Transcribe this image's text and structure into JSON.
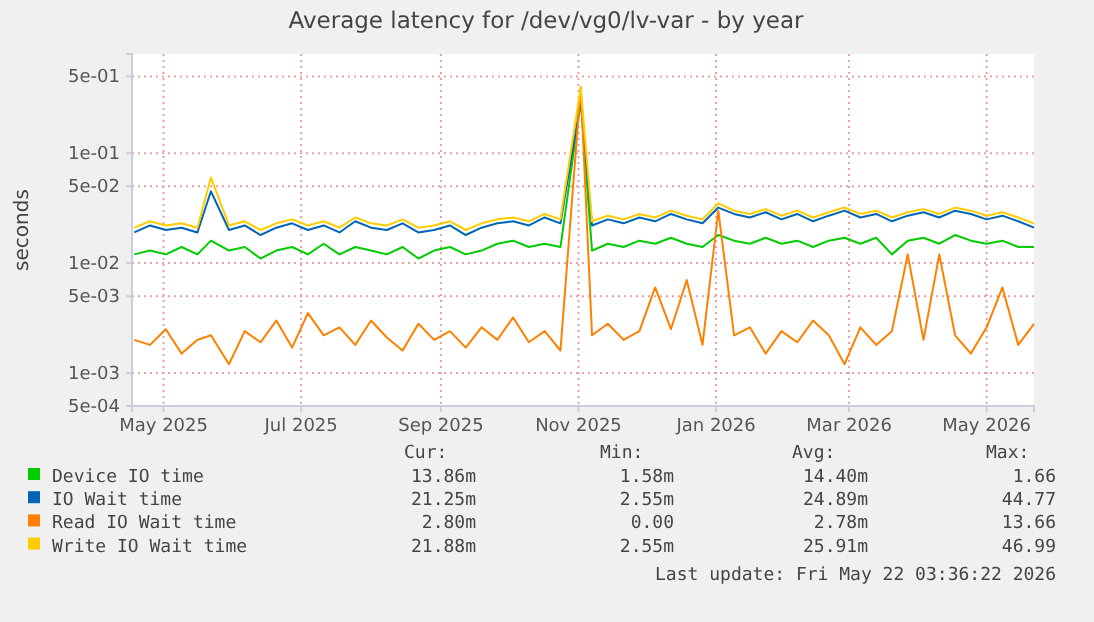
{
  "chart_data": {
    "type": "line",
    "title": "Average latency for /dev/vg0/lv-var - by year",
    "ylabel": "seconds",
    "log": true,
    "grid": true,
    "legend": "bottom",
    "x": [
      "2025-04-18",
      "2025-04-25",
      "2025-05-02",
      "2025-05-09",
      "2025-05-16",
      "2025-05-22",
      "2025-05-30",
      "2025-06-06",
      "2025-06-13",
      "2025-06-20",
      "2025-06-27",
      "2025-07-04",
      "2025-07-11",
      "2025-07-18",
      "2025-07-25",
      "2025-08-01",
      "2025-08-08",
      "2025-08-15",
      "2025-08-22",
      "2025-08-29",
      "2025-09-05",
      "2025-09-12",
      "2025-09-19",
      "2025-09-26",
      "2025-10-03",
      "2025-10-10",
      "2025-10-17",
      "2025-10-24",
      "2025-11-02",
      "2025-11-07",
      "2025-11-14",
      "2025-11-21",
      "2025-11-28",
      "2025-12-05",
      "2025-12-12",
      "2025-12-19",
      "2025-12-26",
      "2026-01-02",
      "2026-01-09",
      "2026-01-16",
      "2026-01-23",
      "2026-01-30",
      "2026-02-06",
      "2026-02-13",
      "2026-02-20",
      "2026-02-27",
      "2026-03-06",
      "2026-03-13",
      "2026-03-20",
      "2026-03-27",
      "2026-04-03",
      "2026-04-10",
      "2026-04-17",
      "2026-04-24",
      "2026-05-01",
      "2026-05-08",
      "2026-05-15",
      "2026-05-22"
    ],
    "xlim": [
      "2025-04-17",
      "2026-05-22"
    ],
    "xticks": [
      {
        "value": "2025-05-01",
        "label": "May 2025"
      },
      {
        "value": "2025-07-01",
        "label": "Jul 2025"
      },
      {
        "value": "2025-09-01",
        "label": "Sep 2025"
      },
      {
        "value": "2025-11-01",
        "label": "Nov 2025"
      },
      {
        "value": "2026-01-01",
        "label": "Jan 2026"
      },
      {
        "value": "2026-03-01",
        "label": "Mar 2026"
      },
      {
        "value": "2026-05-01",
        "label": "May 2026"
      }
    ],
    "ylim": [
      0.0005,
      0.8
    ],
    "yticks": [
      {
        "value": 0.0005,
        "label": "5e-04"
      },
      {
        "value": 0.001,
        "label": "1e-03"
      },
      {
        "value": 0.005,
        "label": "5e-03"
      },
      {
        "value": 0.01,
        "label": "1e-02"
      },
      {
        "value": 0.05,
        "label": "5e-02"
      },
      {
        "value": 0.1,
        "label": "1e-01"
      },
      {
        "value": 0.5,
        "label": "5e-01"
      }
    ],
    "series": [
      {
        "name": "Device IO time",
        "color": "#00cc00",
        "values": [
          0.012,
          0.013,
          0.012,
          0.014,
          0.012,
          0.016,
          0.013,
          0.014,
          0.011,
          0.013,
          0.014,
          0.012,
          0.015,
          0.012,
          0.014,
          0.013,
          0.012,
          0.014,
          0.011,
          0.013,
          0.014,
          0.012,
          0.013,
          0.015,
          0.016,
          0.014,
          0.015,
          0.014,
          0.3,
          0.013,
          0.015,
          0.014,
          0.016,
          0.015,
          0.017,
          0.015,
          0.014,
          0.018,
          0.016,
          0.015,
          0.017,
          0.015,
          0.016,
          0.014,
          0.016,
          0.017,
          0.015,
          0.017,
          0.012,
          0.016,
          0.017,
          0.015,
          0.018,
          0.016,
          0.015,
          0.016,
          0.014,
          0.014
        ]
      },
      {
        "name": "IO Wait time",
        "color": "#0066b3",
        "values": [
          0.019,
          0.022,
          0.02,
          0.021,
          0.019,
          0.045,
          0.02,
          0.022,
          0.018,
          0.021,
          0.023,
          0.02,
          0.022,
          0.019,
          0.024,
          0.021,
          0.02,
          0.023,
          0.019,
          0.02,
          0.022,
          0.018,
          0.021,
          0.023,
          0.024,
          0.022,
          0.026,
          0.023,
          0.3,
          0.022,
          0.025,
          0.023,
          0.026,
          0.024,
          0.028,
          0.025,
          0.023,
          0.032,
          0.028,
          0.026,
          0.029,
          0.025,
          0.028,
          0.024,
          0.027,
          0.03,
          0.026,
          0.028,
          0.024,
          0.027,
          0.029,
          0.026,
          0.03,
          0.028,
          0.025,
          0.027,
          0.024,
          0.021
        ]
      },
      {
        "name": "Read IO Wait time",
        "color": "#ff8000",
        "values": [
          0.002,
          0.0018,
          0.0025,
          0.0015,
          0.002,
          0.0022,
          0.0012,
          0.0024,
          0.0019,
          0.003,
          0.0017,
          0.0035,
          0.0022,
          0.0026,
          0.0018,
          0.003,
          0.0021,
          0.0016,
          0.0028,
          0.002,
          0.0024,
          0.0017,
          0.0026,
          0.002,
          0.0032,
          0.0019,
          0.0024,
          0.0016,
          0.4,
          0.0022,
          0.0028,
          0.002,
          0.0024,
          0.006,
          0.0025,
          0.007,
          0.0018,
          0.03,
          0.0022,
          0.0026,
          0.0015,
          0.0024,
          0.0019,
          0.003,
          0.0022,
          0.0012,
          0.0026,
          0.0018,
          0.0024,
          0.012,
          0.002,
          0.012,
          0.0022,
          0.0015,
          0.0026,
          0.006,
          0.0018,
          0.0028
        ]
      },
      {
        "name": "Write IO Wait time",
        "color": "#ffcc00",
        "values": [
          0.021,
          0.024,
          0.022,
          0.023,
          0.021,
          0.06,
          0.022,
          0.024,
          0.02,
          0.023,
          0.025,
          0.022,
          0.024,
          0.021,
          0.026,
          0.023,
          0.022,
          0.025,
          0.021,
          0.022,
          0.024,
          0.02,
          0.023,
          0.025,
          0.026,
          0.024,
          0.028,
          0.025,
          0.4,
          0.024,
          0.027,
          0.025,
          0.028,
          0.026,
          0.03,
          0.027,
          0.025,
          0.035,
          0.03,
          0.028,
          0.031,
          0.027,
          0.03,
          0.026,
          0.029,
          0.032,
          0.028,
          0.03,
          0.026,
          0.029,
          0.031,
          0.028,
          0.032,
          0.03,
          0.027,
          0.029,
          0.026,
          0.023
        ]
      }
    ],
    "annotations": [
      "Cur:",
      "Min:",
      "Avg:",
      "Max:",
      "13.86m",
      "1.58m",
      "14.40m",
      "1.66",
      "21.25m",
      "2.55m",
      "24.89m",
      "44.77",
      "2.80m",
      "0.00",
      "2.78m",
      "13.66",
      "21.88m",
      "2.55m",
      "25.91m",
      "46.99",
      "Last update: Fri May 22 03:36:22 2026"
    ]
  }
}
